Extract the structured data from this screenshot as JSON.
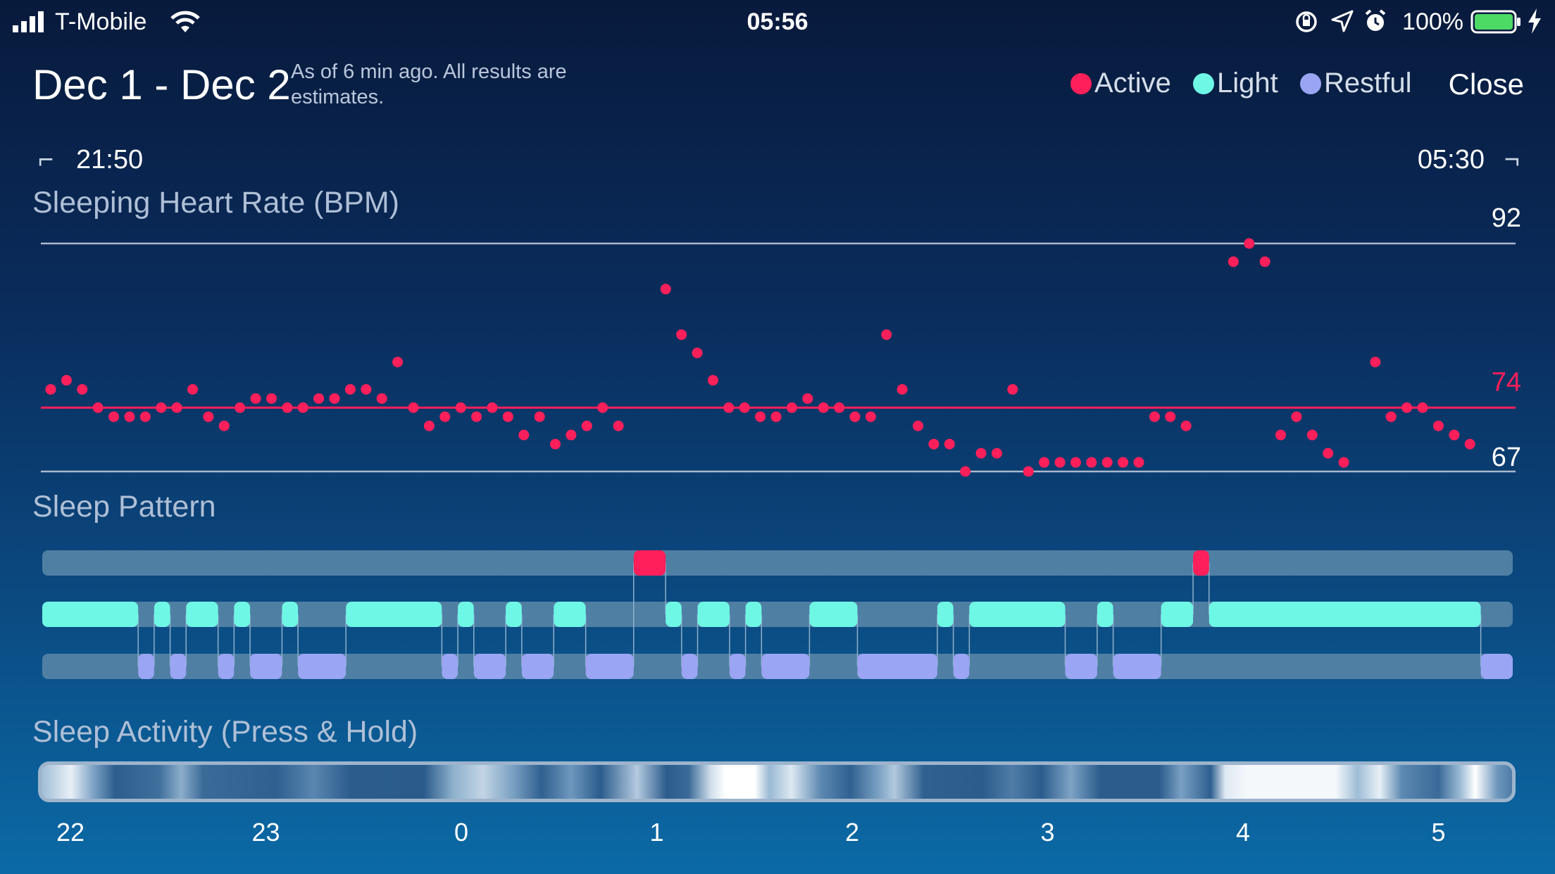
{
  "status_bar": {
    "carrier": "T-Mobile",
    "time": "05:56",
    "battery": "100%",
    "icons": [
      "signal-icon",
      "wifi-icon",
      "orientation-lock-icon",
      "location-icon",
      "alarm-icon",
      "battery-icon",
      "charging-icon"
    ]
  },
  "header": {
    "title": "Dec 1 - Dec 2",
    "subtitle": "As of 6 min ago. All results are estimates.",
    "close_label": "Close"
  },
  "legend": [
    {
      "label": "Active",
      "color": "#ff1f5a"
    },
    {
      "label": "Light",
      "color": "#6ff7e6"
    },
    {
      "label": "Restful",
      "color": "#9aa5f4"
    }
  ],
  "range": {
    "start": "21:50",
    "end": "05:30"
  },
  "sections": {
    "heart_rate": "Sleeping Heart Rate (BPM)",
    "sleep_pattern": "Sleep Pattern",
    "sleep_activity": "Sleep Activity (Press & Hold)"
  },
  "colors": {
    "active": "#ff1f5a",
    "light": "#6ff7e6",
    "restful": "#9aa5f4",
    "track": "#4f7fa3"
  },
  "chart_data": {
    "type": "scatter",
    "title": "Sleeping Heart Rate (BPM)",
    "x_unit": "minutes from 21:50",
    "xlim": [
      0,
      460
    ],
    "ylim": [
      67,
      92
    ],
    "reference_lines": [
      92,
      74,
      67
    ],
    "average": 74,
    "values": [
      76,
      77,
      76,
      74,
      73,
      73,
      73,
      74,
      74,
      76,
      73,
      72,
      74,
      75,
      75,
      74,
      74,
      75,
      75,
      76,
      76,
      75,
      79,
      74,
      72,
      73,
      74,
      73,
      74,
      73,
      71,
      73,
      70,
      71,
      72,
      74,
      72,
      87,
      82,
      80,
      77,
      74,
      74,
      73,
      73,
      74,
      75,
      74,
      74,
      73,
      73,
      82,
      76,
      72,
      70,
      70,
      67,
      69,
      69,
      76,
      67,
      68,
      68,
      68,
      68,
      68,
      68,
      68,
      73,
      73,
      72,
      90,
      92,
      90,
      71,
      73,
      71,
      69,
      68,
      79,
      73,
      74,
      74,
      72,
      71,
      70
    ],
    "x": [
      0,
      5,
      10,
      15,
      20,
      25,
      30,
      35,
      40,
      45,
      50,
      55,
      60,
      65,
      70,
      75,
      80,
      85,
      90,
      95,
      100,
      105,
      110,
      115,
      120,
      125,
      130,
      135,
      140,
      145,
      150,
      155,
      160,
      165,
      170,
      175,
      180,
      195,
      200,
      205,
      210,
      215,
      220,
      225,
      230,
      235,
      240,
      245,
      250,
      255,
      260,
      265,
      270,
      275,
      280,
      285,
      290,
      295,
      300,
      305,
      310,
      315,
      320,
      325,
      330,
      335,
      340,
      345,
      350,
      355,
      360,
      375,
      380,
      385,
      390,
      395,
      400,
      405,
      410,
      420,
      425,
      430,
      435,
      440,
      445,
      450
    ]
  },
  "sleep_pattern": {
    "x_unit": "minutes from 21:50",
    "total_minutes": 460,
    "active": [
      [
        185,
        195
      ],
      [
        360,
        365
      ]
    ],
    "light": [
      [
        0,
        30
      ],
      [
        35,
        40
      ],
      [
        45,
        55
      ],
      [
        60,
        65
      ],
      [
        75,
        80
      ],
      [
        95,
        125
      ],
      [
        130,
        135
      ],
      [
        145,
        150
      ],
      [
        160,
        170
      ],
      [
        195,
        200
      ],
      [
        205,
        215
      ],
      [
        220,
        225
      ],
      [
        240,
        255
      ],
      [
        280,
        285
      ],
      [
        290,
        320
      ],
      [
        330,
        335
      ],
      [
        350,
        360
      ],
      [
        365,
        450
      ]
    ],
    "restful": [
      [
        30,
        35
      ],
      [
        40,
        45
      ],
      [
        55,
        60
      ],
      [
        65,
        75
      ],
      [
        80,
        95
      ],
      [
        125,
        130
      ],
      [
        135,
        145
      ],
      [
        150,
        160
      ],
      [
        170,
        185
      ],
      [
        200,
        205
      ],
      [
        215,
        220
      ],
      [
        225,
        240
      ],
      [
        255,
        280
      ],
      [
        285,
        290
      ],
      [
        320,
        330
      ],
      [
        335,
        350
      ],
      [
        450,
        460
      ]
    ]
  },
  "sleep_activity": {
    "ticks": [
      "22",
      "23",
      "0",
      "1",
      "2",
      "3",
      "4",
      "5"
    ]
  }
}
